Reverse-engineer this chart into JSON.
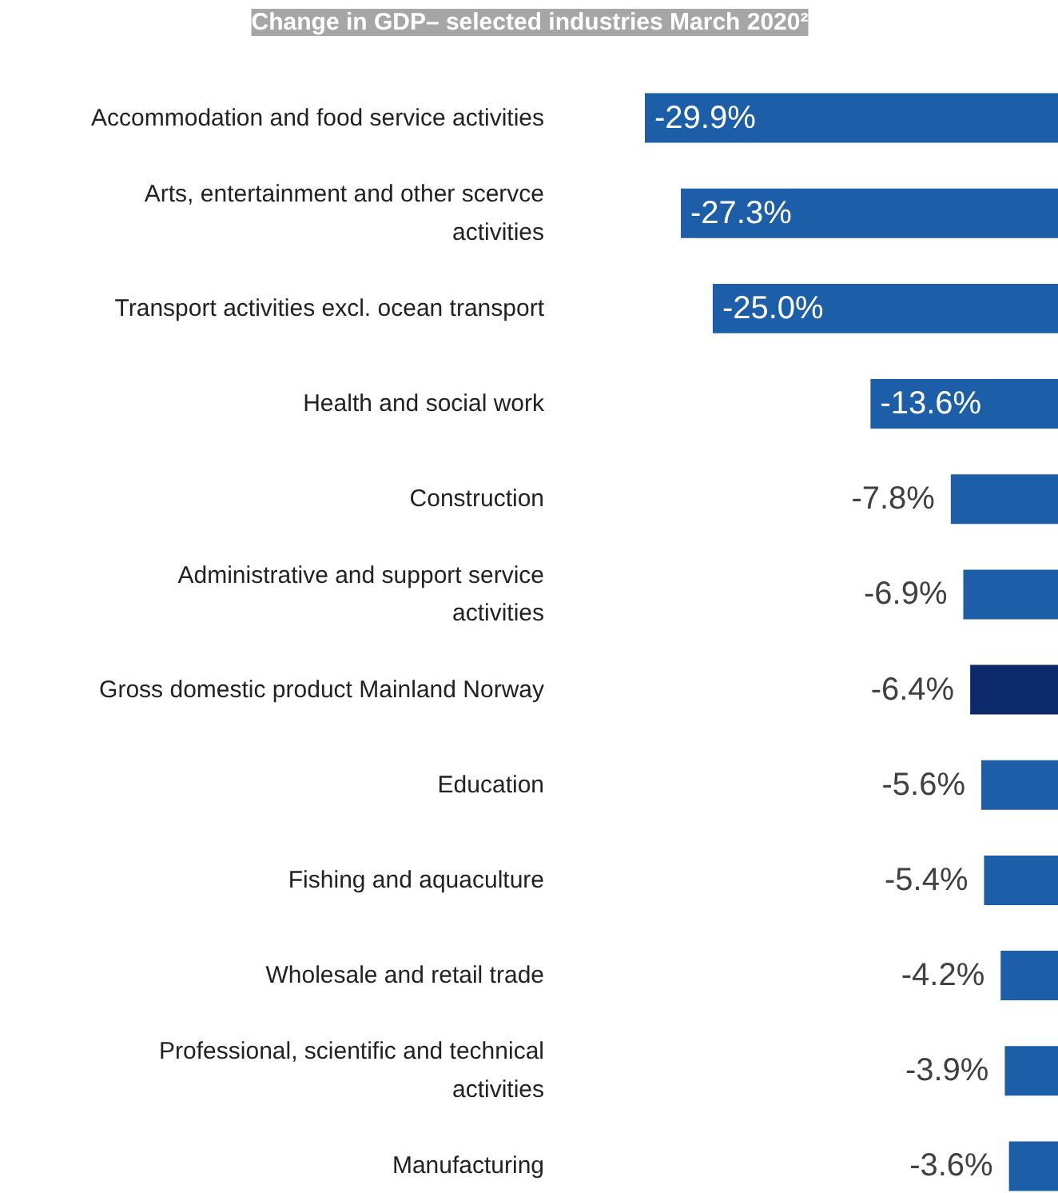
{
  "chart_data": {
    "type": "bar",
    "orientation": "horizontal",
    "title": "Change in GDP– selected industries March 2020²",
    "categories": [
      "Accommodation and food service activities",
      "Arts, entertainment and other scervce activities",
      "Transport activities excl. ocean transport",
      "Health and social work",
      "Construction",
      "Administrative and support service activities",
      "Gross domestic product Mainland Norway",
      "Education",
      "Fishing and aquaculture",
      "Wholesale and retail trade",
      "Professional, scientific and technical activities",
      "Manufacturing"
    ],
    "values": [
      -29.9,
      -27.3,
      -25.0,
      -13.6,
      -7.8,
      -6.9,
      -6.4,
      -5.6,
      -5.4,
      -4.2,
      -3.9,
      -3.6
    ],
    "value_labels": [
      "-29.9%",
      "-27.3%",
      "-25.0%",
      "-13.6%",
      "-7.8%",
      "-6.9%",
      "-6.4%",
      "-5.6%",
      "-5.4%",
      "-4.2%",
      "-3.9%",
      "-3.6%"
    ],
    "colors": [
      "#1c5fa8",
      "#1c5fa8",
      "#1c5fa8",
      "#1c5fa8",
      "#1c5fa8",
      "#1c5fa8",
      "#0c2a6a",
      "#1c5fa8",
      "#1c5fa8",
      "#1c5fa8",
      "#1c5fa8",
      "#1c5fa8"
    ]
  }
}
